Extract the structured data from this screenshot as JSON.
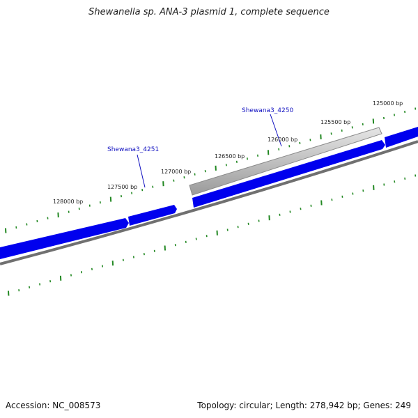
{
  "title": "Shewanella sp. ANA-3 plasmid 1, complete sequence",
  "footer": {
    "accession": "Accession: NC_008573",
    "summary": "Topology: circular; Length: 278,942 bp; Genes: 249"
  },
  "colors": {
    "forward_gene": "#0000ee",
    "grey_gene": "#aaaaaa",
    "backbone": "#777777",
    "tick": "#228822",
    "label": "#1010c0"
  },
  "ticks": [
    {
      "label": "125000 bp",
      "bp": 125000
    },
    {
      "label": "125500 bp",
      "bp": 125500
    },
    {
      "label": "126000 bp",
      "bp": 126000
    },
    {
      "label": "126500 bp",
      "bp": 126500
    },
    {
      "label": "127000 bp",
      "bp": 127000
    },
    {
      "label": "127500 bp",
      "bp": 127500
    },
    {
      "label": "128000 bp",
      "bp": 128000
    }
  ],
  "genes": [
    {
      "label": "Shewana3_4250"
    },
    {
      "label": "Shewana3_4251"
    }
  ]
}
